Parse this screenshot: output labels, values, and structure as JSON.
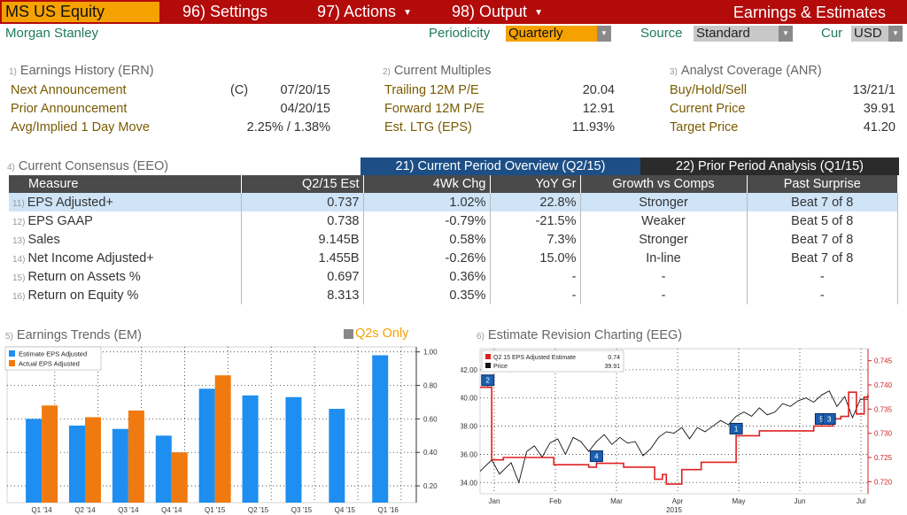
{
  "header": {
    "ticker": "MS US Equity",
    "menu_settings": "96) Settings",
    "menu_actions": "97) Actions",
    "menu_output": "98) Output",
    "title": "Earnings & Estimates"
  },
  "subheader": {
    "company": "Morgan Stanley",
    "periodicity_label": "Periodicity",
    "periodicity_value": "Quarterly",
    "source_label": "Source",
    "source_value": "Standard",
    "cur_label": "Cur",
    "cur_value": "USD"
  },
  "earnings_history": {
    "num": "1)",
    "title": "Earnings History (ERN)",
    "rows": [
      {
        "label": "Next Announcement",
        "prefix": "(C)",
        "value": "07/20/15"
      },
      {
        "label": "Prior Announcement",
        "prefix": "",
        "value": "04/20/15"
      },
      {
        "label": "Avg/Implied 1 Day Move",
        "prefix": "",
        "value": "2.25% / 1.38%"
      }
    ]
  },
  "current_multiples": {
    "num": "2)",
    "title": "Current Multiples",
    "rows": [
      {
        "label": "Trailing 12M P/E",
        "value": "20.04"
      },
      {
        "label": "Forward 12M P/E",
        "value": "12.91"
      },
      {
        "label": "Est. LTG (EPS)",
        "value": "11.93%"
      }
    ]
  },
  "analyst_coverage": {
    "num": "3)",
    "title": "Analyst Coverage (ANR)",
    "rows": [
      {
        "label": "Buy/Hold/Sell",
        "value": "13/21/1"
      },
      {
        "label": "Current Price",
        "value": "39.91"
      },
      {
        "label": "Target Price",
        "value": "41.20"
      }
    ]
  },
  "consensus": {
    "num": "4)",
    "title": "Current Consensus (EEO)",
    "tab_current": "21) Current Period Overview (Q2/15)",
    "tab_prior": "22) Prior Period Analysis (Q1/15)",
    "headers": [
      "Measure",
      "Q2/15 Est",
      "4Wk Chg",
      "YoY Gr",
      "Growth vs Comps",
      "Past Surprise"
    ],
    "rows": [
      {
        "num": "11)",
        "measure": "EPS Adjusted+",
        "est": "0.737",
        "chg": "1.02%",
        "chg_sign": "pos",
        "yoy": "22.8%",
        "yoy_sign": "pos",
        "growth": "Stronger",
        "surprise": "Beat 7 of 8"
      },
      {
        "num": "12)",
        "measure": "EPS GAAP",
        "est": "0.738",
        "chg": "-0.79%",
        "chg_sign": "neg",
        "yoy": "-21.5%",
        "yoy_sign": "neg",
        "growth": "Weaker",
        "surprise": "Beat 5 of 8"
      },
      {
        "num": "13)",
        "measure": "Sales",
        "est": "9.145B",
        "chg": "0.58%",
        "chg_sign": "pos",
        "yoy": "7.3%",
        "yoy_sign": "pos",
        "growth": "Stronger",
        "surprise": "Beat 7 of 8"
      },
      {
        "num": "14)",
        "measure": "Net Income Adjusted+",
        "est": "1.455B",
        "chg": "-0.26%",
        "chg_sign": "neg",
        "yoy": "15.0%",
        "yoy_sign": "pos",
        "growth": "In-line",
        "surprise": "Beat 7 of 8"
      },
      {
        "num": "15)",
        "measure": "Return on Assets %",
        "est": "0.697",
        "chg": "0.36%",
        "chg_sign": "pos",
        "yoy": "-",
        "yoy_sign": "none",
        "growth": "-",
        "surprise": "-"
      },
      {
        "num": "16)",
        "measure": "Return on Equity %",
        "est": "8.313",
        "chg": "0.35%",
        "chg_sign": "pos",
        "yoy": "-",
        "yoy_sign": "none",
        "growth": "-",
        "surprise": "-"
      }
    ]
  },
  "earnings_trends": {
    "num": "5)",
    "title": "Earnings Trends (EM)",
    "toggle_label": "Q2s Only"
  },
  "estimate_revision": {
    "num": "6)",
    "title": "Estimate Revision Charting (EEG)"
  },
  "chart_data": [
    {
      "type": "bar",
      "categories": [
        "Q1 '14",
        "Q2 '14",
        "Q3 '14",
        "Q4 '14",
        "Q1 '15",
        "Q2 '15",
        "Q3 '15",
        "Q4 '15",
        "Q1 '16"
      ],
      "series": [
        {
          "name": "Estimate EPS Adjusted",
          "color": "#1e8ef0",
          "values": [
            0.6,
            0.56,
            0.54,
            0.5,
            0.78,
            0.74,
            0.73,
            0.66,
            0.98
          ]
        },
        {
          "name": "Actual EPS Adjusted",
          "color": "#f07a10",
          "values": [
            0.68,
            0.61,
            0.65,
            0.4,
            0.86,
            null,
            null,
            null,
            null
          ]
        }
      ],
      "yticks": [
        "0.20",
        "0.40",
        "0.60",
        "0.80",
        "1.00"
      ],
      "ylim": [
        0.1,
        1.03
      ],
      "legend_position": "top-left",
      "grid": true
    },
    {
      "type": "line",
      "xlabel": "2015",
      "xticks": [
        "Jan",
        "Feb",
        "Mar",
        "Apr",
        "May",
        "Jun",
        "Jul"
      ],
      "left_axis": {
        "ticks": [
          "34.00",
          "36.00",
          "38.00",
          "40.00",
          "42.00"
        ],
        "range": [
          33.2,
          43.5
        ]
      },
      "right_axis": {
        "ticks": [
          "0.720",
          "0.725",
          "0.730",
          "0.735",
          "0.740",
          "0.745"
        ],
        "range": [
          0.7175,
          0.7475
        ]
      },
      "legend": [
        {
          "name": "Q2 15 EPS Adjusted Estimate",
          "value": "0.74",
          "color": "#e02020"
        },
        {
          "name": "Price",
          "value": "39.91",
          "color": "#111111"
        }
      ],
      "legend_position": "top-left",
      "markers": [
        {
          "label": "2",
          "t": 0.02
        },
        {
          "label": "4",
          "t": 0.3
        },
        {
          "label": "1",
          "t": 0.66
        },
        {
          "label": "5",
          "t": 0.88
        },
        {
          "label": "3",
          "t": 0.9
        }
      ],
      "estimate_series": {
        "axis": "right",
        "t": [
          0.0,
          0.02,
          0.03,
          0.06,
          0.1,
          0.18,
          0.19,
          0.27,
          0.28,
          0.3,
          0.36,
          0.37,
          0.44,
          0.45,
          0.47,
          0.48,
          0.51,
          0.52,
          0.56,
          0.57,
          0.65,
          0.66,
          0.71,
          0.72,
          0.85,
          0.86,
          0.9,
          0.91,
          0.93,
          0.95,
          0.97,
          0.99,
          1.0
        ],
        "v": [
          0.7395,
          0.7395,
          0.7245,
          0.725,
          0.725,
          0.725,
          0.7235,
          0.7235,
          0.723,
          0.7238,
          0.7238,
          0.723,
          0.723,
          0.7205,
          0.7215,
          0.7195,
          0.7195,
          0.7225,
          0.7225,
          0.724,
          0.724,
          0.7295,
          0.7295,
          0.7305,
          0.7305,
          0.7315,
          0.7315,
          0.733,
          0.7335,
          0.7385,
          0.734,
          0.7375,
          0.738
        ]
      },
      "price_series": {
        "axis": "left",
        "t": [
          0.0,
          0.03,
          0.05,
          0.08,
          0.1,
          0.12,
          0.14,
          0.16,
          0.18,
          0.2,
          0.22,
          0.24,
          0.26,
          0.28,
          0.3,
          0.32,
          0.34,
          0.36,
          0.38,
          0.4,
          0.42,
          0.44,
          0.46,
          0.48,
          0.5,
          0.52,
          0.54,
          0.56,
          0.58,
          0.6,
          0.62,
          0.64,
          0.66,
          0.68,
          0.7,
          0.72,
          0.74,
          0.76,
          0.78,
          0.8,
          0.82,
          0.84,
          0.86,
          0.88,
          0.9,
          0.92,
          0.94,
          0.96,
          0.98,
          1.0
        ],
        "v": [
          34.8,
          35.6,
          34.6,
          35.4,
          34.0,
          36.2,
          36.6,
          35.8,
          36.8,
          37.1,
          36.0,
          37.2,
          36.9,
          36.2,
          36.9,
          37.4,
          36.7,
          37.2,
          36.8,
          36.9,
          35.9,
          36.4,
          37.2,
          37.6,
          37.5,
          37.9,
          37.1,
          37.9,
          37.6,
          38.0,
          38.4,
          38.1,
          38.7,
          39.0,
          38.7,
          39.3,
          38.8,
          39.0,
          39.6,
          39.4,
          39.8,
          40.0,
          39.7,
          40.2,
          40.5,
          39.4,
          40.1,
          38.6,
          39.9,
          39.91
        ]
      }
    }
  ]
}
